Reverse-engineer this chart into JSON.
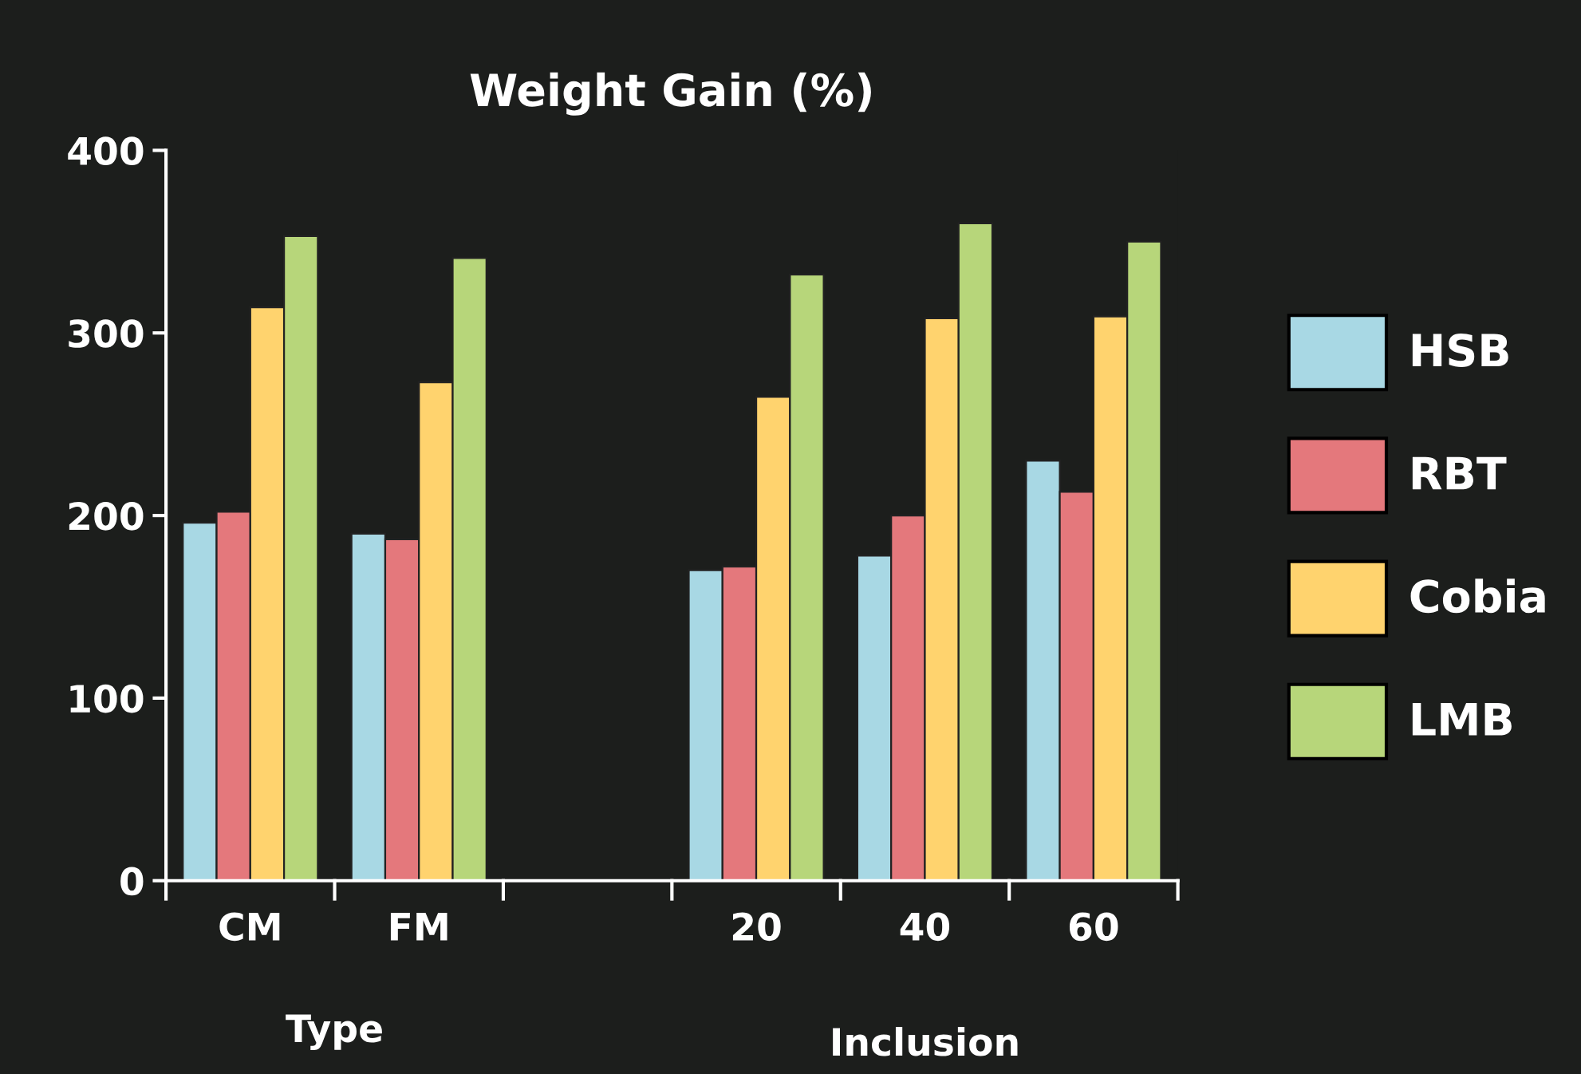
{
  "chart_data": {
    "type": "bar",
    "title": "Weight Gain (%)",
    "categories": [
      "CM",
      "FM",
      null,
      "20",
      "40",
      "60"
    ],
    "series": [
      {
        "name": "HSB",
        "color": "#a8d8e4",
        "values": [
          196,
          190,
          null,
          170,
          178,
          230
        ]
      },
      {
        "name": "RBT",
        "color": "#e4787c",
        "values": [
          202,
          187,
          null,
          172,
          200,
          213
        ]
      },
      {
        "name": "Cobia",
        "color": "#ffd36e",
        "values": [
          314,
          273,
          null,
          265,
          308,
          309
        ]
      },
      {
        "name": "LMB",
        "color": "#b7d67a",
        "values": [
          353,
          341,
          null,
          332,
          360,
          350
        ]
      }
    ],
    "ylim": [
      0,
      400
    ],
    "yticks": [
      0,
      100,
      200,
      300,
      400
    ],
    "annotations": [
      "Type",
      "Inclusion"
    ],
    "grid": false,
    "legend": "right"
  }
}
